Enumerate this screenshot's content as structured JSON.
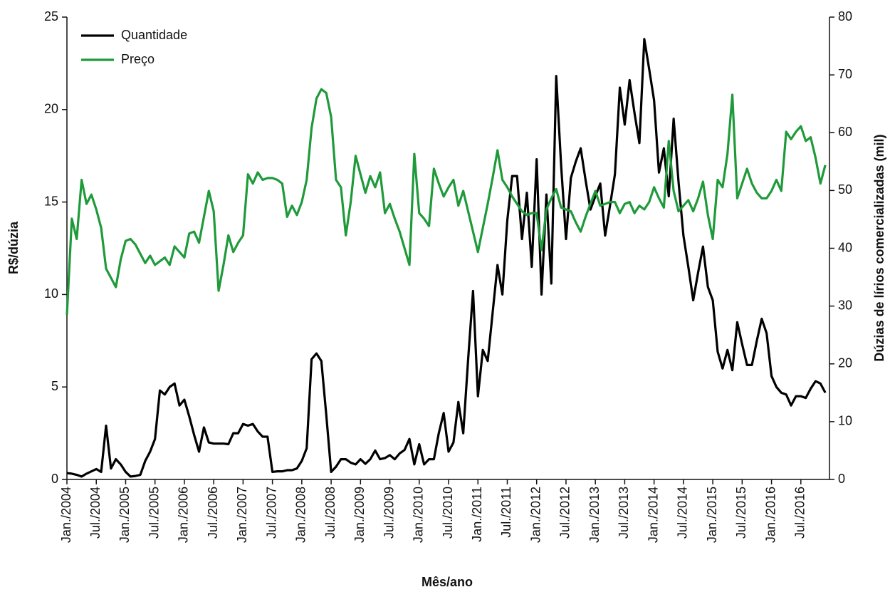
{
  "chart_data": {
    "type": "line",
    "xlabel": "Mês/ano",
    "ylabel": "R$/dúzia",
    "y2label": "Dúzias de lírios comercializadas (mil)",
    "categories": [
      "Jan./2004",
      null,
      null,
      null,
      null,
      null,
      "Jul./2004",
      null,
      null,
      null,
      null,
      null,
      "Jan./2005",
      null,
      null,
      null,
      null,
      null,
      "Jul./2005",
      null,
      null,
      null,
      null,
      null,
      "Jan./2006",
      null,
      null,
      null,
      null,
      null,
      "Jul./2006",
      null,
      null,
      null,
      null,
      null,
      "Jan./2007",
      null,
      null,
      null,
      null,
      null,
      "Jul./2007",
      null,
      null,
      null,
      null,
      null,
      "Jan./2008",
      null,
      null,
      null,
      null,
      null,
      "Jul./2008",
      null,
      null,
      null,
      null,
      null,
      "Jan./2009",
      null,
      null,
      null,
      null,
      null,
      "Jul./2009",
      null,
      null,
      null,
      null,
      null,
      "Jan./2010",
      null,
      null,
      null,
      null,
      null,
      "Jul./2010",
      null,
      null,
      null,
      null,
      null,
      "Jan./2011",
      null,
      null,
      null,
      null,
      null,
      "Jul./2011",
      null,
      null,
      null,
      null,
      null,
      "Jan./2012",
      null,
      null,
      null,
      null,
      null,
      "Jul./2012",
      null,
      null,
      null,
      null,
      null,
      "Jan./2013",
      null,
      null,
      null,
      null,
      null,
      "Jul./2013",
      null,
      null,
      null,
      null,
      null,
      "Jan./2014",
      null,
      null,
      null,
      null,
      null,
      "Jul./2014",
      null,
      null,
      null,
      null,
      null,
      "Jan./2015",
      null,
      null,
      null,
      null,
      null,
      "Jul./2015",
      null,
      null,
      null,
      null,
      null,
      "Jan./2016",
      null,
      null,
      null,
      null,
      null,
      "Jul./2016",
      null,
      null,
      null,
      null,
      null
    ],
    "series": [
      {
        "name": "Quantidade",
        "color": "#000000",
        "axis": "y2",
        "values": [
          1.1,
          1.0,
          0.8,
          0.5,
          1.0,
          1.4,
          1.8,
          1.3,
          9.3,
          1.9,
          3.5,
          2.6,
          1.3,
          0.5,
          0.6,
          0.8,
          3.2,
          4.8,
          7.0,
          15.4,
          14.7,
          16.0,
          16.6,
          12.8,
          13.8,
          10.9,
          7.7,
          4.8,
          9.0,
          6.4,
          6.2,
          6.2,
          6.2,
          6.1,
          8.0,
          8.0,
          9.6,
          9.3,
          9.6,
          8.3,
          7.4,
          7.4,
          1.3,
          1.4,
          1.4,
          1.6,
          1.6,
          1.9,
          3.2,
          5.4,
          20.8,
          21.8,
          20.5,
          11.2,
          1.3,
          2.2,
          3.5,
          3.5,
          2.9,
          2.6,
          3.5,
          2.7,
          3.5,
          5.0,
          3.5,
          3.7,
          4.2,
          3.5,
          4.5,
          5.1,
          7.0,
          2.6,
          6.1,
          2.6,
          3.5,
          3.5,
          8.0,
          11.5,
          4.8,
          6.4,
          13.4,
          8.0,
          20.8,
          32.6,
          14.4,
          22.4,
          20.5,
          28.8,
          37.1,
          32.0,
          44.8,
          52.5,
          52.5,
          41.6,
          49.6,
          36.8,
          55.4,
          32.0,
          49.3,
          33.9,
          69.8,
          54.4,
          41.6,
          52.2,
          55.0,
          57.3,
          51.8,
          46.7,
          49.0,
          51.2,
          42.2,
          47.4,
          52.8,
          67.8,
          61.4,
          69.1,
          63.4,
          58.2,
          76.2,
          71.0,
          65.6,
          53.1,
          57.3,
          49.0,
          62.4,
          51.5,
          42.2,
          36.8,
          31.0,
          35.8,
          40.3,
          33.3,
          31.0,
          22.1,
          19.2,
          22.4,
          18.9,
          27.2,
          23.4,
          19.8,
          19.8,
          24.0,
          27.8,
          25.3,
          17.9,
          16.0,
          15.0,
          14.7,
          12.8,
          14.4,
          14.4,
          14.1,
          15.7,
          17.0,
          16.6,
          15.0
        ]
      },
      {
        "name": "Preço",
        "color": "#1f9a3a",
        "values": [
          8.9,
          14.1,
          13.0,
          16.2,
          14.9,
          15.4,
          14.6,
          13.6,
          11.4,
          10.9,
          10.4,
          11.9,
          12.9,
          13.0,
          12.7,
          12.2,
          11.7,
          12.1,
          11.6,
          11.8,
          12.0,
          11.6,
          12.6,
          12.3,
          12.0,
          13.3,
          13.4,
          12.8,
          14.2,
          15.6,
          14.5,
          10.2,
          11.6,
          13.2,
          12.3,
          12.8,
          13.2,
          16.5,
          16.0,
          16.6,
          16.2,
          16.3,
          16.3,
          16.2,
          16.0,
          14.2,
          14.8,
          14.3,
          15.0,
          16.2,
          19.0,
          20.6,
          21.1,
          20.9,
          19.6,
          16.2,
          15.8,
          13.2,
          15.0,
          17.5,
          16.5,
          15.5,
          16.4,
          15.8,
          16.6,
          14.4,
          14.9,
          14.1,
          13.4,
          12.5,
          11.6,
          17.6,
          14.4,
          14.1,
          13.7,
          16.8,
          16.0,
          15.3,
          15.8,
          16.2,
          14.8,
          15.6,
          14.5,
          13.4,
          12.3,
          13.6,
          14.9,
          16.3,
          17.8,
          16.2,
          15.8,
          15.3,
          14.9,
          14.5,
          14.3,
          14.4,
          14.4,
          12.4,
          14.6,
          15.2,
          15.7,
          14.7,
          14.6,
          14.5,
          13.9,
          13.4,
          14.2,
          14.9,
          15.6,
          14.8,
          14.9,
          15.0,
          15.0,
          14.4,
          14.9,
          15.0,
          14.4,
          14.8,
          14.6,
          15.0,
          15.8,
          15.2,
          14.7,
          18.3,
          15.6,
          14.5,
          14.8,
          15.1,
          14.5,
          15.2,
          16.1,
          14.3,
          13.0,
          16.2,
          15.8,
          17.6,
          20.8,
          15.2,
          16.0,
          16.8,
          16.0,
          15.5,
          15.2,
          15.2,
          15.6,
          16.2,
          15.6,
          18.8,
          18.4,
          18.8,
          19.1,
          18.3,
          18.5,
          17.4,
          16.0,
          17.0
        ]
      }
    ],
    "ylim": [
      0,
      25
    ],
    "yticks": [
      0,
      5,
      10,
      15,
      20,
      25
    ],
    "y2lim": [
      0,
      80
    ],
    "y2ticks": [
      0,
      10,
      20,
      30,
      40,
      50,
      60,
      70,
      80
    ],
    "legend": "upper left",
    "grid": false
  }
}
